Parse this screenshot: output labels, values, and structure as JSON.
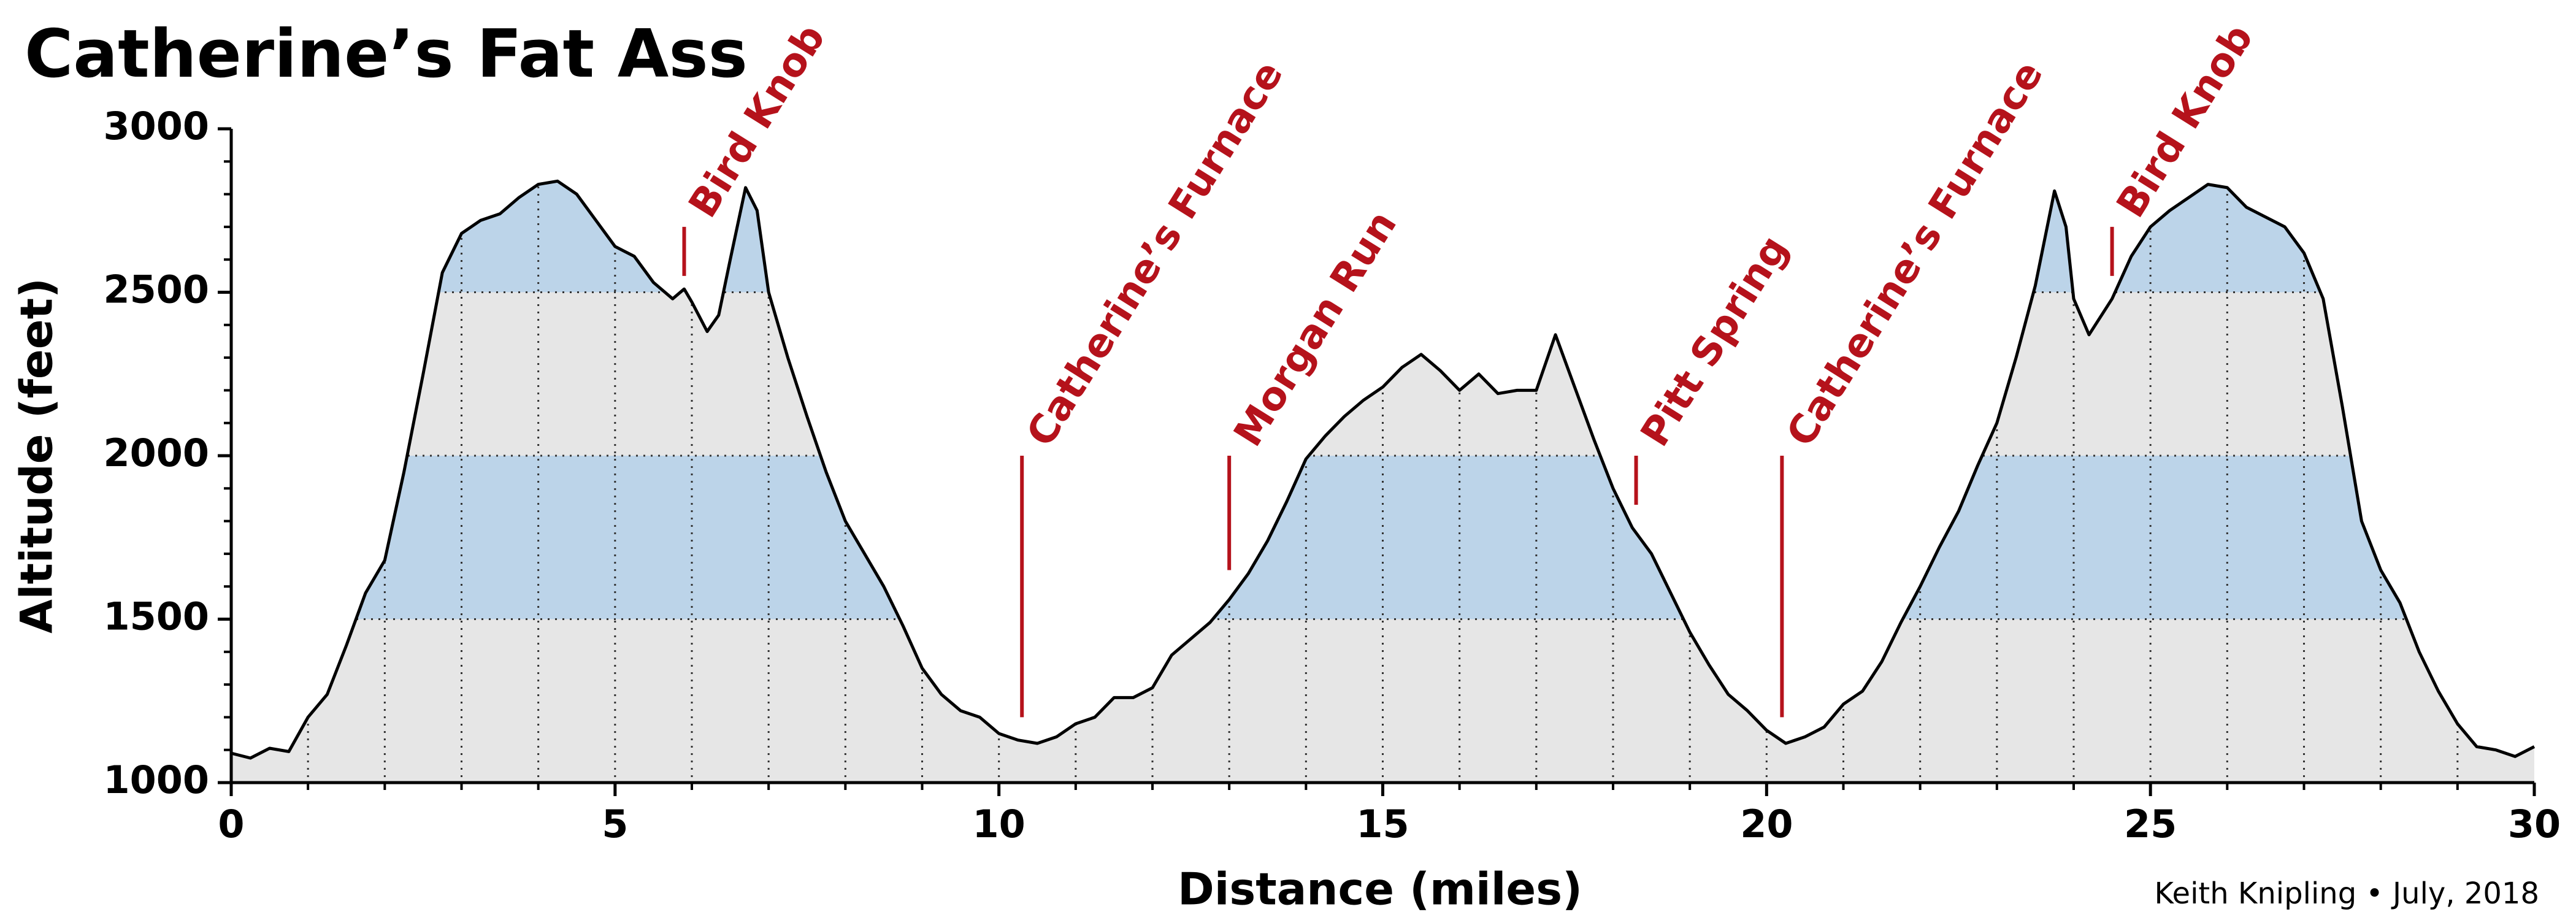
{
  "chart_data": {
    "type": "area",
    "title": "Catherine’s Fat Ass",
    "x_label": "Distance  (miles)",
    "y_label": "Altitude  (feet)",
    "credit": "Keith Knipling • July, 2018",
    "xlim": [
      0,
      30
    ],
    "ylim": [
      1000,
      3000
    ],
    "xticks": [
      0,
      5,
      10,
      15,
      20,
      25,
      30
    ],
    "yticks": [
      1000,
      1500,
      2000,
      2500,
      3000
    ],
    "minor_ticks_per_major": 5,
    "grid": true,
    "fill_color": "#e6e6e6",
    "band_color": "#bcd4e9",
    "shaded_bands": [
      [
        1500,
        2000
      ],
      [
        2500,
        3000
      ]
    ],
    "annotation_color": "#b5121b",
    "x": [
      0,
      0.25,
      0.5,
      0.75,
      1,
      1.25,
      1.5,
      1.75,
      2,
      2.25,
      2.5,
      2.75,
      3,
      3.25,
      3.5,
      3.75,
      4,
      4.25,
      4.5,
      4.75,
      5,
      5.25,
      5.5,
      5.75,
      5.9,
      6,
      6.2,
      6.35,
      6.5,
      6.7,
      6.85,
      7,
      7.25,
      7.5,
      7.75,
      8,
      8.25,
      8.5,
      8.75,
      9,
      9.25,
      9.5,
      9.75,
      10,
      10.25,
      10.5,
      10.75,
      11,
      11.25,
      11.5,
      11.75,
      12,
      12.25,
      12.5,
      12.75,
      13,
      13.25,
      13.5,
      13.75,
      14,
      14.25,
      14.5,
      14.75,
      15,
      15.25,
      15.5,
      15.75,
      16,
      16.25,
      16.5,
      16.75,
      17,
      17.25,
      17.5,
      17.75,
      18,
      18.25,
      18.5,
      18.75,
      19,
      19.25,
      19.5,
      19.75,
      20,
      20.25,
      20.5,
      20.75,
      21,
      21.25,
      21.5,
      21.75,
      22,
      22.25,
      22.5,
      22.75,
      23,
      23.25,
      23.5,
      23.75,
      23.9,
      24,
      24.2,
      24.5,
      24.75,
      25,
      25.25,
      25.5,
      25.75,
      26,
      26.25,
      26.5,
      26.75,
      27,
      27.25,
      27.5,
      27.75,
      28,
      28.25,
      28.5,
      28.75,
      29,
      29.25,
      29.5,
      29.75,
      30
    ],
    "values": [
      1090,
      1075,
      1105,
      1095,
      1200,
      1270,
      1420,
      1580,
      1680,
      1950,
      2250,
      2560,
      2680,
      2720,
      2740,
      2790,
      2830,
      2840,
      2800,
      2720,
      2640,
      2610,
      2530,
      2480,
      2510,
      2470,
      2380,
      2430,
      2600,
      2820,
      2750,
      2500,
      2300,
      2120,
      1950,
      1800,
      1700,
      1600,
      1480,
      1350,
      1270,
      1220,
      1200,
      1150,
      1130,
      1120,
      1140,
      1180,
      1200,
      1260,
      1260,
      1290,
      1390,
      1440,
      1490,
      1560,
      1640,
      1740,
      1860,
      1990,
      2060,
      2120,
      2170,
      2210,
      2270,
      2310,
      2260,
      2200,
      2250,
      2190,
      2200,
      2200,
      2370,
      2210,
      2050,
      1900,
      1780,
      1700,
      1580,
      1460,
      1360,
      1270,
      1220,
      1160,
      1120,
      1140,
      1170,
      1240,
      1280,
      1370,
      1490,
      1600,
      1720,
      1830,
      1970,
      2100,
      2300,
      2520,
      2810,
      2700,
      2480,
      2370,
      2480,
      2610,
      2700,
      2750,
      2790,
      2830,
      2820,
      2760,
      2730,
      2700,
      2620,
      2480,
      2150,
      1800,
      1650,
      1550,
      1400,
      1280,
      1180,
      1110,
      1100,
      1080,
      1110
    ],
    "annotations": [
      {
        "text": "Bird Knob",
        "x": 5.9,
        "y": [
          2550,
          2700
        ]
      },
      {
        "text": "Catherine’s Furnace",
        "x": 10.3,
        "y": [
          1200,
          2000
        ]
      },
      {
        "text": "Morgan Run",
        "x": 13.0,
        "y": [
          1650,
          2000
        ]
      },
      {
        "text": "Pitt Spring",
        "x": 18.3,
        "y": [
          1850,
          2000
        ]
      },
      {
        "text": "Catherine’s Furnace",
        "x": 20.2,
        "y": [
          1200,
          2000
        ]
      },
      {
        "text": "Bird Knob",
        "x": 24.5,
        "y": [
          2550,
          2700
        ]
      }
    ]
  }
}
